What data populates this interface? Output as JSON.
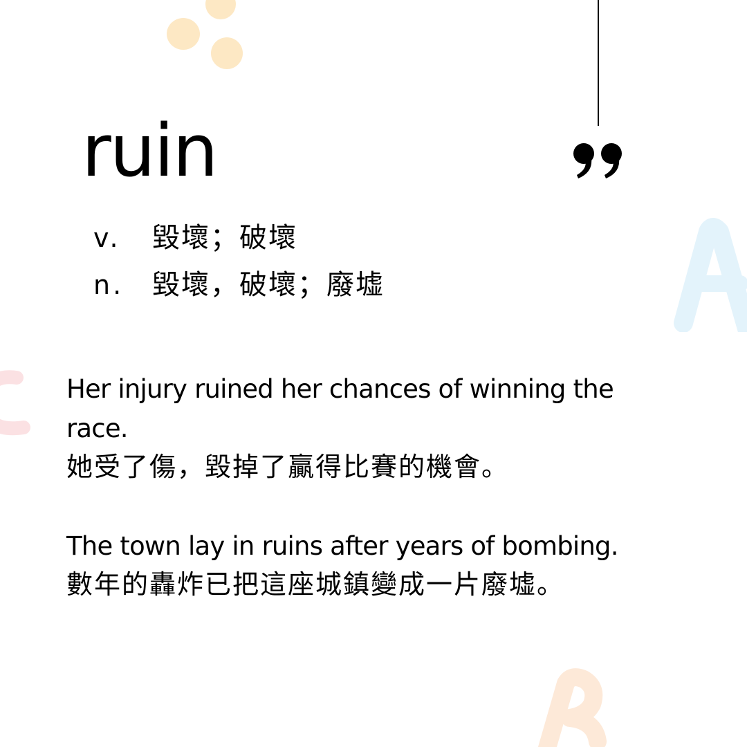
{
  "colors": {
    "background": "#ffffff",
    "text": "#000000",
    "dot_yellow": "#fde8c4",
    "letter_blue": "#e3f3fb",
    "letter_pink": "#fbe1e3",
    "letter_peach": "#fde9d8"
  },
  "decorations": [
    {
      "name": "yellow-dot",
      "color_key": "dot_yellow"
    },
    {
      "name": "letter-a-shape",
      "glyph": "A",
      "color_key": "letter_blue"
    },
    {
      "name": "letter-c-shape",
      "glyph": "C",
      "color_key": "letter_pink"
    },
    {
      "name": "letter-b-shape",
      "glyph": "B",
      "color_key": "letter_peach"
    }
  ],
  "icons": {
    "quote": "closing-quote-icon"
  },
  "entry": {
    "word": "ruin",
    "definitions": [
      {
        "pos": "v.",
        "meaning": "毀壞；破壞"
      },
      {
        "pos": "n.",
        "meaning": "毀壞，破壞；廢墟"
      }
    ]
  },
  "examples": [
    {
      "en": "Her injury ruined her chances of winning the race.",
      "zh": "她受了傷，毀掉了贏得比賽的機會。"
    },
    {
      "en": "The town lay in ruins after years of bombing.",
      "zh": "數年的轟炸已把這座城鎮變成一片廢墟。"
    }
  ]
}
